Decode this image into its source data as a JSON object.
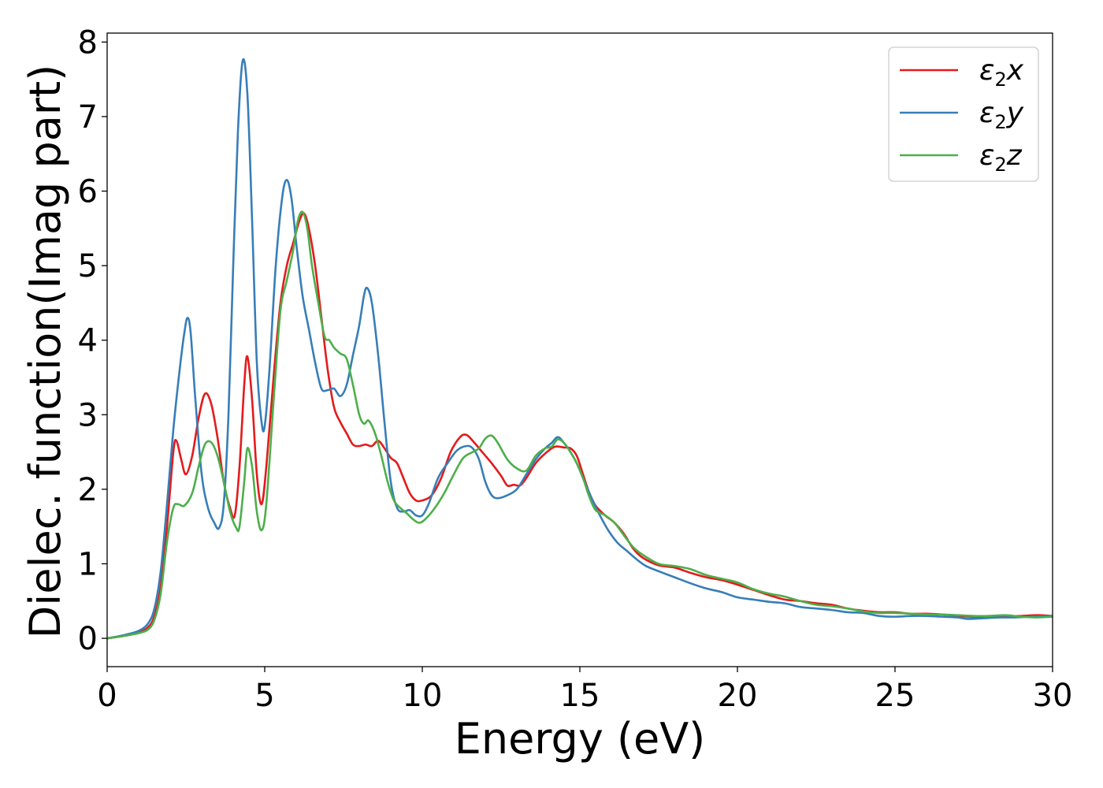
{
  "chart_data": {
    "type": "line",
    "xlabel": "Energy (eV)",
    "ylabel": "Dielec. function(Imag part)",
    "xlim": [
      0,
      30
    ],
    "ylim": [
      -0.38,
      8.12
    ],
    "xticks": [
      "0",
      "5",
      "10",
      "15",
      "20",
      "25",
      "30"
    ],
    "yticks": [
      "0",
      "1",
      "2",
      "3",
      "4",
      "5",
      "6",
      "7",
      "8"
    ],
    "grid": false,
    "legend_position": "top-right",
    "series": [
      {
        "name": "ε2x",
        "legend": {
          "base": "ε",
          "sub": "2",
          "var": "x"
        },
        "color": "#e41a1c",
        "points": [
          [
            0,
            0
          ],
          [
            0.5,
            0.03
          ],
          [
            1.0,
            0.08
          ],
          [
            1.3,
            0.15
          ],
          [
            1.5,
            0.3
          ],
          [
            1.7,
            0.7
          ],
          [
            1.9,
            1.5
          ],
          [
            2.1,
            2.5
          ],
          [
            2.2,
            2.65
          ],
          [
            2.35,
            2.4
          ],
          [
            2.5,
            2.2
          ],
          [
            2.7,
            2.45
          ],
          [
            2.9,
            2.95
          ],
          [
            3.1,
            3.28
          ],
          [
            3.3,
            3.15
          ],
          [
            3.5,
            2.7
          ],
          [
            3.7,
            2.1
          ],
          [
            3.9,
            1.75
          ],
          [
            4.05,
            1.65
          ],
          [
            4.2,
            2.3
          ],
          [
            4.35,
            3.4
          ],
          [
            4.45,
            3.78
          ],
          [
            4.6,
            3.2
          ],
          [
            4.75,
            2.2
          ],
          [
            4.9,
            1.8
          ],
          [
            5.05,
            2.3
          ],
          [
            5.3,
            3.6
          ],
          [
            5.5,
            4.5
          ],
          [
            5.7,
            5.0
          ],
          [
            5.9,
            5.3
          ],
          [
            6.1,
            5.6
          ],
          [
            6.25,
            5.7
          ],
          [
            6.4,
            5.5
          ],
          [
            6.6,
            5.0
          ],
          [
            6.8,
            4.3
          ],
          [
            7.0,
            3.6
          ],
          [
            7.2,
            3.1
          ],
          [
            7.4,
            2.9
          ],
          [
            7.6,
            2.75
          ],
          [
            7.8,
            2.6
          ],
          [
            8.0,
            2.58
          ],
          [
            8.2,
            2.6
          ],
          [
            8.4,
            2.58
          ],
          [
            8.6,
            2.65
          ],
          [
            8.8,
            2.55
          ],
          [
            9.0,
            2.42
          ],
          [
            9.2,
            2.35
          ],
          [
            9.4,
            2.15
          ],
          [
            9.6,
            1.95
          ],
          [
            9.8,
            1.85
          ],
          [
            10.0,
            1.85
          ],
          [
            10.3,
            1.92
          ],
          [
            10.6,
            2.15
          ],
          [
            10.9,
            2.5
          ],
          [
            11.2,
            2.7
          ],
          [
            11.4,
            2.73
          ],
          [
            11.6,
            2.65
          ],
          [
            11.9,
            2.5
          ],
          [
            12.2,
            2.35
          ],
          [
            12.5,
            2.18
          ],
          [
            12.7,
            2.05
          ],
          [
            12.9,
            2.06
          ],
          [
            13.1,
            2.05
          ],
          [
            13.3,
            2.15
          ],
          [
            13.6,
            2.35
          ],
          [
            13.9,
            2.48
          ],
          [
            14.2,
            2.57
          ],
          [
            14.5,
            2.56
          ],
          [
            14.7,
            2.55
          ],
          [
            14.9,
            2.45
          ],
          [
            15.1,
            2.2
          ],
          [
            15.3,
            1.95
          ],
          [
            15.5,
            1.78
          ],
          [
            15.8,
            1.65
          ],
          [
            16.1,
            1.55
          ],
          [
            16.4,
            1.4
          ],
          [
            16.7,
            1.2
          ],
          [
            17.0,
            1.08
          ],
          [
            17.5,
            0.98
          ],
          [
            18.0,
            0.95
          ],
          [
            18.5,
            0.88
          ],
          [
            19.0,
            0.82
          ],
          [
            19.5,
            0.78
          ],
          [
            20.0,
            0.72
          ],
          [
            20.5,
            0.65
          ],
          [
            21.0,
            0.58
          ],
          [
            21.5,
            0.52
          ],
          [
            22.0,
            0.5
          ],
          [
            22.5,
            0.47
          ],
          [
            23.0,
            0.45
          ],
          [
            23.5,
            0.4
          ],
          [
            24.0,
            0.37
          ],
          [
            24.5,
            0.35
          ],
          [
            25.0,
            0.35
          ],
          [
            25.5,
            0.33
          ],
          [
            26.0,
            0.33
          ],
          [
            26.5,
            0.32
          ],
          [
            27.0,
            0.3
          ],
          [
            27.5,
            0.29
          ],
          [
            28.0,
            0.3
          ],
          [
            28.5,
            0.3
          ],
          [
            29.0,
            0.3
          ],
          [
            29.5,
            0.31
          ],
          [
            30.0,
            0.3
          ]
        ]
      },
      {
        "name": "ε2y",
        "legend": {
          "base": "ε",
          "sub": "2",
          "var": "y"
        },
        "color": "#377eb8",
        "points": [
          [
            0,
            0
          ],
          [
            0.5,
            0.04
          ],
          [
            1.0,
            0.1
          ],
          [
            1.3,
            0.2
          ],
          [
            1.5,
            0.4
          ],
          [
            1.7,
            0.9
          ],
          [
            1.9,
            1.8
          ],
          [
            2.1,
            2.8
          ],
          [
            2.3,
            3.6
          ],
          [
            2.45,
            4.1
          ],
          [
            2.55,
            4.3
          ],
          [
            2.65,
            4.1
          ],
          [
            2.8,
            3.2
          ],
          [
            3.0,
            2.2
          ],
          [
            3.2,
            1.75
          ],
          [
            3.4,
            1.55
          ],
          [
            3.55,
            1.48
          ],
          [
            3.7,
            1.8
          ],
          [
            3.85,
            3.0
          ],
          [
            4.0,
            5.0
          ],
          [
            4.15,
            6.8
          ],
          [
            4.3,
            7.75
          ],
          [
            4.45,
            7.3
          ],
          [
            4.6,
            5.6
          ],
          [
            4.75,
            3.7
          ],
          [
            4.9,
            2.9
          ],
          [
            5.0,
            2.85
          ],
          [
            5.15,
            3.6
          ],
          [
            5.35,
            5.0
          ],
          [
            5.55,
            5.9
          ],
          [
            5.7,
            6.15
          ],
          [
            5.85,
            5.9
          ],
          [
            6.0,
            5.3
          ],
          [
            6.2,
            4.6
          ],
          [
            6.4,
            4.15
          ],
          [
            6.6,
            3.7
          ],
          [
            6.8,
            3.35
          ],
          [
            7.0,
            3.33
          ],
          [
            7.2,
            3.35
          ],
          [
            7.4,
            3.25
          ],
          [
            7.6,
            3.4
          ],
          [
            7.8,
            3.8
          ],
          [
            8.0,
            4.2
          ],
          [
            8.15,
            4.6
          ],
          [
            8.25,
            4.7
          ],
          [
            8.4,
            4.5
          ],
          [
            8.6,
            3.8
          ],
          [
            8.8,
            2.9
          ],
          [
            9.0,
            2.1
          ],
          [
            9.2,
            1.75
          ],
          [
            9.4,
            1.7
          ],
          [
            9.6,
            1.72
          ],
          [
            9.8,
            1.65
          ],
          [
            10.0,
            1.65
          ],
          [
            10.2,
            1.8
          ],
          [
            10.5,
            2.15
          ],
          [
            10.8,
            2.35
          ],
          [
            11.1,
            2.52
          ],
          [
            11.4,
            2.58
          ],
          [
            11.6,
            2.55
          ],
          [
            11.8,
            2.4
          ],
          [
            12.0,
            2.1
          ],
          [
            12.2,
            1.92
          ],
          [
            12.4,
            1.88
          ],
          [
            12.7,
            1.92
          ],
          [
            13.0,
            2.0
          ],
          [
            13.3,
            2.2
          ],
          [
            13.6,
            2.4
          ],
          [
            13.9,
            2.55
          ],
          [
            14.1,
            2.62
          ],
          [
            14.3,
            2.7
          ],
          [
            14.5,
            2.62
          ],
          [
            14.7,
            2.5
          ],
          [
            14.9,
            2.35
          ],
          [
            15.1,
            2.15
          ],
          [
            15.3,
            1.95
          ],
          [
            15.6,
            1.68
          ],
          [
            15.9,
            1.45
          ],
          [
            16.2,
            1.28
          ],
          [
            16.5,
            1.17
          ],
          [
            16.8,
            1.06
          ],
          [
            17.1,
            0.97
          ],
          [
            17.5,
            0.9
          ],
          [
            18.0,
            0.82
          ],
          [
            18.5,
            0.74
          ],
          [
            19.0,
            0.67
          ],
          [
            19.5,
            0.62
          ],
          [
            20.0,
            0.55
          ],
          [
            20.5,
            0.52
          ],
          [
            21.0,
            0.49
          ],
          [
            21.5,
            0.47
          ],
          [
            22.0,
            0.42
          ],
          [
            22.5,
            0.4
          ],
          [
            23.0,
            0.38
          ],
          [
            23.5,
            0.35
          ],
          [
            24.0,
            0.34
          ],
          [
            24.5,
            0.3
          ],
          [
            25.0,
            0.29
          ],
          [
            25.5,
            0.3
          ],
          [
            26.0,
            0.3
          ],
          [
            26.5,
            0.29
          ],
          [
            27.0,
            0.28
          ],
          [
            27.3,
            0.26
          ],
          [
            27.8,
            0.27
          ],
          [
            28.3,
            0.28
          ],
          [
            28.8,
            0.28
          ],
          [
            29.3,
            0.29
          ],
          [
            30.0,
            0.3
          ]
        ]
      },
      {
        "name": "ε2z",
        "legend": {
          "base": "ε",
          "sub": "2",
          "var": "z"
        },
        "color": "#4daf4a",
        "points": [
          [
            0,
            0
          ],
          [
            0.5,
            0.03
          ],
          [
            1.0,
            0.07
          ],
          [
            1.3,
            0.12
          ],
          [
            1.5,
            0.25
          ],
          [
            1.7,
            0.6
          ],
          [
            1.9,
            1.3
          ],
          [
            2.1,
            1.75
          ],
          [
            2.25,
            1.8
          ],
          [
            2.45,
            1.78
          ],
          [
            2.7,
            1.95
          ],
          [
            2.9,
            2.3
          ],
          [
            3.1,
            2.6
          ],
          [
            3.3,
            2.63
          ],
          [
            3.5,
            2.45
          ],
          [
            3.7,
            2.1
          ],
          [
            3.9,
            1.7
          ],
          [
            4.1,
            1.48
          ],
          [
            4.2,
            1.5
          ],
          [
            4.35,
            2.1
          ],
          [
            4.45,
            2.55
          ],
          [
            4.6,
            2.3
          ],
          [
            4.75,
            1.7
          ],
          [
            4.9,
            1.45
          ],
          [
            5.05,
            1.8
          ],
          [
            5.3,
            3.3
          ],
          [
            5.5,
            4.4
          ],
          [
            5.7,
            4.8
          ],
          [
            5.9,
            5.2
          ],
          [
            6.05,
            5.6
          ],
          [
            6.2,
            5.72
          ],
          [
            6.35,
            5.5
          ],
          [
            6.5,
            5.0
          ],
          [
            6.7,
            4.5
          ],
          [
            6.9,
            4.05
          ],
          [
            7.05,
            4.0
          ],
          [
            7.2,
            3.9
          ],
          [
            7.4,
            3.82
          ],
          [
            7.6,
            3.75
          ],
          [
            7.8,
            3.4
          ],
          [
            8.0,
            3.0
          ],
          [
            8.15,
            2.88
          ],
          [
            8.3,
            2.92
          ],
          [
            8.5,
            2.75
          ],
          [
            8.7,
            2.45
          ],
          [
            8.9,
            2.1
          ],
          [
            9.1,
            1.85
          ],
          [
            9.3,
            1.75
          ],
          [
            9.5,
            1.68
          ],
          [
            9.7,
            1.6
          ],
          [
            9.9,
            1.55
          ],
          [
            10.1,
            1.6
          ],
          [
            10.4,
            1.75
          ],
          [
            10.7,
            1.95
          ],
          [
            11.0,
            2.2
          ],
          [
            11.3,
            2.42
          ],
          [
            11.6,
            2.5
          ],
          [
            11.8,
            2.55
          ],
          [
            12.0,
            2.68
          ],
          [
            12.2,
            2.72
          ],
          [
            12.4,
            2.62
          ],
          [
            12.7,
            2.4
          ],
          [
            13.0,
            2.28
          ],
          [
            13.3,
            2.25
          ],
          [
            13.6,
            2.45
          ],
          [
            13.9,
            2.55
          ],
          [
            14.1,
            2.57
          ],
          [
            14.3,
            2.67
          ],
          [
            14.5,
            2.62
          ],
          [
            14.7,
            2.5
          ],
          [
            14.9,
            2.35
          ],
          [
            15.1,
            2.15
          ],
          [
            15.3,
            1.9
          ],
          [
            15.5,
            1.72
          ],
          [
            15.8,
            1.65
          ],
          [
            16.1,
            1.55
          ],
          [
            16.4,
            1.38
          ],
          [
            16.7,
            1.22
          ],
          [
            17.0,
            1.12
          ],
          [
            17.5,
            1.0
          ],
          [
            18.0,
            0.97
          ],
          [
            18.5,
            0.93
          ],
          [
            19.0,
            0.85
          ],
          [
            19.5,
            0.8
          ],
          [
            20.0,
            0.75
          ],
          [
            20.5,
            0.66
          ],
          [
            21.0,
            0.6
          ],
          [
            21.5,
            0.56
          ],
          [
            22.0,
            0.5
          ],
          [
            22.5,
            0.45
          ],
          [
            23.0,
            0.43
          ],
          [
            23.5,
            0.4
          ],
          [
            24.0,
            0.36
          ],
          [
            24.5,
            0.34
          ],
          [
            25.0,
            0.34
          ],
          [
            25.5,
            0.33
          ],
          [
            26.0,
            0.32
          ],
          [
            26.5,
            0.32
          ],
          [
            27.0,
            0.31
          ],
          [
            27.5,
            0.3
          ],
          [
            28.0,
            0.3
          ],
          [
            28.5,
            0.31
          ],
          [
            29.0,
            0.29
          ],
          [
            29.5,
            0.28
          ],
          [
            30.0,
            0.29
          ]
        ]
      }
    ]
  }
}
